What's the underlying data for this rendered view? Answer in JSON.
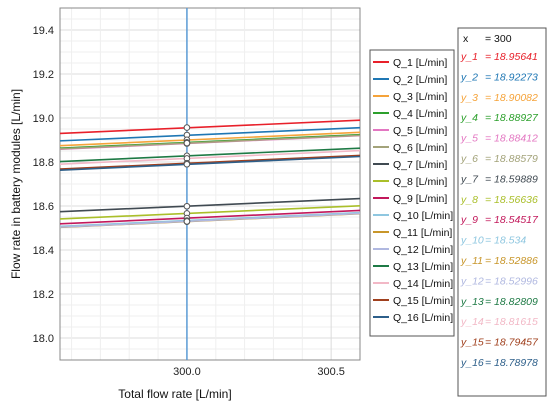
{
  "chart_data": {
    "type": "line",
    "xlabel": "Total flow rate [L/min]",
    "ylabel": "Flow rate in battery modules [L/min]",
    "xlim": [
      299.56,
      300.6
    ],
    "ylim": [
      17.9,
      19.5
    ],
    "x_ticks": [
      300.0,
      300.5
    ],
    "x_tick_labels": [
      "300.0",
      "300.5"
    ],
    "y_ticks": [
      18.0,
      18.2,
      18.4,
      18.6,
      18.8,
      19.0,
      19.2,
      19.4
    ],
    "y_tick_labels": [
      "18.0",
      "18.2",
      "18.4",
      "18.6",
      "18.8",
      "19.0",
      "19.2",
      "19.4"
    ],
    "grid": true,
    "legend_position": "right",
    "x": [
      299.56,
      300.6
    ],
    "series": [
      {
        "name": "Q_1 [L/min]",
        "color": "#e8202a",
        "values": [
          18.93,
          18.99
        ]
      },
      {
        "name": "Q_2 [L/min]",
        "color": "#1f77b4",
        "values": [
          18.896,
          18.956
        ]
      },
      {
        "name": "Q_3 [L/min]",
        "color": "#f5a33a",
        "values": [
          18.874,
          18.935
        ]
      },
      {
        "name": "Q_4 [L/min]",
        "color": "#2ca02c",
        "values": [
          18.863,
          18.924
        ]
      },
      {
        "name": "Q_5 [L/min]",
        "color": "#e377c2",
        "values": [
          18.858,
          18.92
        ]
      },
      {
        "name": "Q_6 [L/min]",
        "color": "#a3a37a",
        "values": [
          18.86,
          18.921
        ]
      },
      {
        "name": "Q_7 [L/min]",
        "color": "#404a52",
        "values": [
          18.574,
          18.634
        ]
      },
      {
        "name": "Q_8 [L/min]",
        "color": "#aabf2a",
        "values": [
          18.541,
          18.601
        ]
      },
      {
        "name": "Q_9 [L/min]",
        "color": "#c2185b",
        "values": [
          18.519,
          18.58
        ]
      },
      {
        "name": "Q_10 [L/min]",
        "color": "#8fc7e0",
        "values": [
          18.508,
          18.57
        ]
      },
      {
        "name": "Q_11 [L/min]",
        "color": "#c8962a",
        "values": [
          18.503,
          18.565
        ]
      },
      {
        "name": "Q_12 [L/min]",
        "color": "#b0b8e0",
        "values": [
          18.504,
          18.566
        ]
      },
      {
        "name": "Q_13 [L/min]",
        "color": "#1e7a45",
        "values": [
          18.802,
          18.863
        ]
      },
      {
        "name": "Q_14 [L/min]",
        "color": "#f2b8c6",
        "values": [
          18.79,
          18.852
        ]
      },
      {
        "name": "Q_15 [L/min]",
        "color": "#a0401e",
        "values": [
          18.768,
          18.83
        ]
      },
      {
        "name": "Q_16 [L/min]",
        "color": "#2d5f8a",
        "values": [
          18.763,
          18.825
        ]
      }
    ],
    "cursor": {
      "x": 300.0,
      "color": "#5b9bd5",
      "x_label": "x",
      "x_value_text": "= 300",
      "readouts": [
        {
          "label": "y_1",
          "text": "= 18.95641",
          "value": 18.95641
        },
        {
          "label": "y_2",
          "text": "= 18.92273",
          "value": 18.92273
        },
        {
          "label": "y_3",
          "text": "= 18.90082",
          "value": 18.90082
        },
        {
          "label": "y_4",
          "text": "= 18.88927",
          "value": 18.88927
        },
        {
          "label": "y_5",
          "text": "= 18.88412",
          "value": 18.88412
        },
        {
          "label": "y_6",
          "text": "= 18.88579",
          "value": 18.88579
        },
        {
          "label": "y_7",
          "text": "= 18.59889",
          "value": 18.59889
        },
        {
          "label": "y_8",
          "text": "= 18.56636",
          "value": 18.56636
        },
        {
          "label": "y_9",
          "text": "= 18.54517",
          "value": 18.54517
        },
        {
          "label": "y_10",
          "text": "= 18.534",
          "value": 18.534
        },
        {
          "label": "y_11",
          "text": "= 18.52886",
          "value": 18.52886
        },
        {
          "label": "y_12",
          "text": "= 18.52996",
          "value": 18.52996
        },
        {
          "label": "y_13",
          "text": "= 18.82809",
          "value": 18.82809
        },
        {
          "label": "y_14",
          "text": "= 18.81615",
          "value": 18.81615
        },
        {
          "label": "y_15",
          "text": "= 18.79457",
          "value": 18.79457
        },
        {
          "label": "y_16",
          "text": "= 18.78978",
          "value": 18.78978
        }
      ]
    }
  }
}
